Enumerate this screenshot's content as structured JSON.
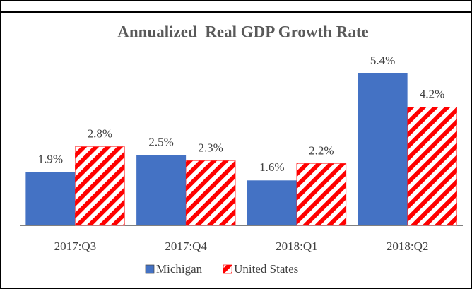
{
  "chart_data": {
    "type": "bar",
    "title": "Annualized  Real GDP Growth Rate",
    "categories": [
      "2017:Q3",
      "2017:Q4",
      "2018:Q1",
      "2018:Q2"
    ],
    "series": [
      {
        "name": "Michigan",
        "color": "#4472c4",
        "values": [
          1.9,
          2.5,
          1.6,
          5.4
        ],
        "value_labels": [
          "1.9%",
          "2.5%",
          "1.6%",
          "5.4%"
        ]
      },
      {
        "name": "United States",
        "color": "#ff0000",
        "hatch": true,
        "values": [
          2.8,
          2.3,
          2.2,
          4.2
        ],
        "value_labels": [
          "2.8%",
          "2.3%",
          "2.2%",
          "4.2%"
        ]
      }
    ],
    "legend": "bottom"
  }
}
